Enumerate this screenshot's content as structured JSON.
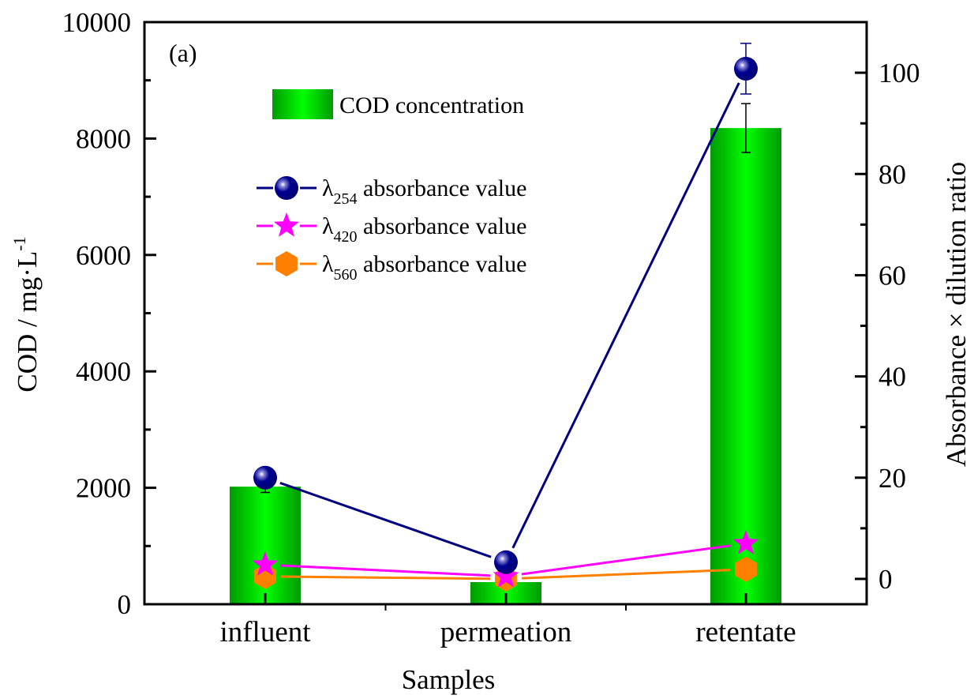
{
  "chart_data": {
    "type": "bar",
    "panel_label": "(a)",
    "categories": [
      "influent",
      "permeation",
      "retentate"
    ],
    "xlabel": "Samples",
    "ylabel_left": {
      "main": "COD / mg·L",
      "sup": "-1"
    },
    "ylabel_right": "Absorbance × dilution ratio",
    "y_left": {
      "lim": [
        0,
        10000
      ],
      "ticks": [
        0,
        2000,
        4000,
        6000,
        8000,
        10000
      ],
      "minor_step": 1000
    },
    "y_right": {
      "lim": [
        -5,
        110
      ],
      "ticks": [
        0,
        20,
        40,
        60,
        80,
        100
      ],
      "minor_step": 10
    },
    "grid": false,
    "bars": {
      "name": "COD concentration",
      "axis": "left",
      "values": [
        2020,
        380,
        8180
      ],
      "errors": [
        100,
        0,
        420
      ],
      "color_edge": "#009a00",
      "color_center": "#00ff00"
    },
    "series": [
      {
        "name": "absorbance value",
        "lambda": "254",
        "axis": "right",
        "marker": "sphere",
        "color": "#000080",
        "values": [
          20.0,
          3.3,
          100.8
        ],
        "errors": [
          0.5,
          0.5,
          5.0
        ]
      },
      {
        "name": "absorbance value",
        "lambda": "420",
        "axis": "right",
        "marker": "star",
        "color": "#ff00ff",
        "values": [
          2.8,
          0.5,
          7.0
        ],
        "errors": [
          0.3,
          0.3,
          0.3
        ]
      },
      {
        "name": "absorbance value",
        "lambda": "560",
        "axis": "right",
        "marker": "hexagon",
        "color": "#ff8000",
        "values": [
          0.5,
          0.0,
          1.9
        ],
        "errors": [
          0.3,
          0.3,
          0.3
        ]
      }
    ],
    "legend": {
      "bar_entry": "COD concentration",
      "line_prefix": "λ",
      "placement": "upper-left"
    }
  }
}
